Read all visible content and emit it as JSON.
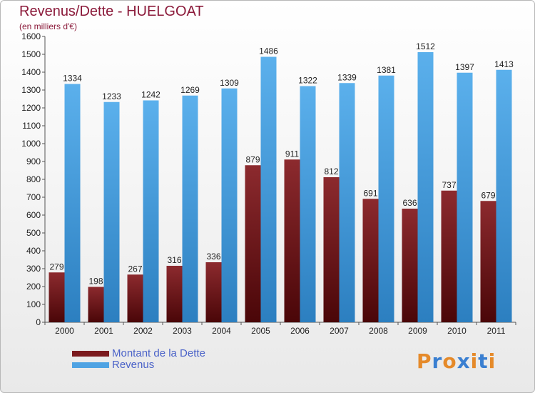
{
  "chart_data": {
    "type": "bar",
    "title": "Revenus/Dette - HUELGOAT",
    "subtitle": "(en milliers d'€)",
    "categories": [
      "2000",
      "2001",
      "2002",
      "2003",
      "2004",
      "2005",
      "2006",
      "2007",
      "2008",
      "2009",
      "2010",
      "2011"
    ],
    "series": [
      {
        "name": "Montant de la Dette",
        "color": "#7b1a1e",
        "values": [
          279,
          198,
          267,
          316,
          336,
          879,
          911,
          812,
          691,
          636,
          737,
          679
        ]
      },
      {
        "name": "Revenus",
        "color": "#4fa3e3",
        "values": [
          1334,
          1233,
          1242,
          1269,
          1309,
          1486,
          1322,
          1339,
          1381,
          1512,
          1397,
          1413
        ]
      }
    ],
    "ylim": [
      0,
      1600
    ],
    "yticks": [
      0,
      100,
      200,
      300,
      400,
      500,
      600,
      700,
      800,
      900,
      1000,
      1100,
      1200,
      1300,
      1400,
      1500,
      1600
    ],
    "grid": false,
    "legend_position": "bottom-left"
  },
  "logo": {
    "letters": [
      "P",
      "r",
      "o",
      "x",
      "i",
      "t",
      "i"
    ],
    "colors": [
      "#e58a2a",
      "#3a7fd1",
      "#e58a2a",
      "#3a7fd1",
      "#e58a2a",
      "#3a7fd1",
      "#e58a2a"
    ]
  }
}
